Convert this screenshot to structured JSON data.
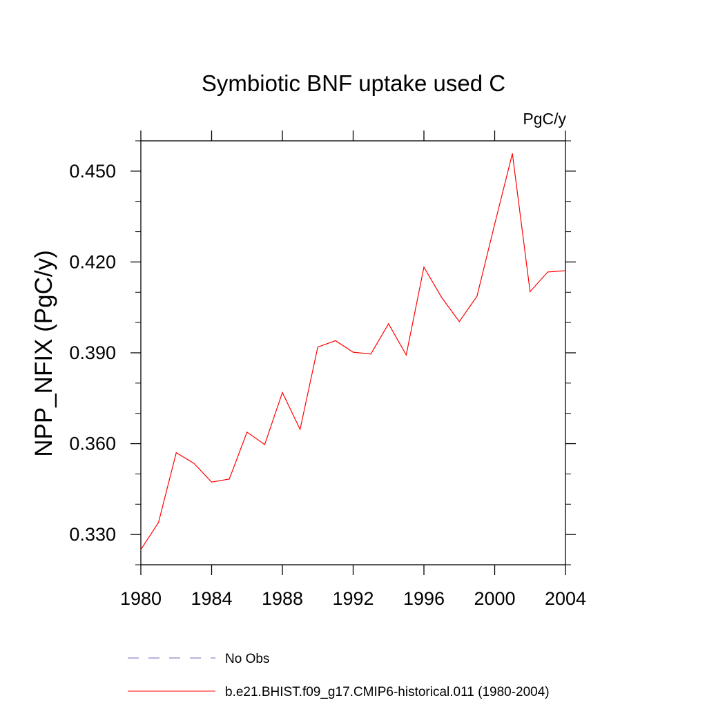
{
  "chart_data": {
    "type": "line",
    "title": "Symbiotic BNF uptake used C",
    "units_label": "PgC/y",
    "ylabel": "NPP_NFIX  (PgC/y)",
    "xlabel": "",
    "xlim": [
      1980,
      2004
    ],
    "ylim": [
      0.32,
      0.46
    ],
    "x_ticks": [
      1980,
      1984,
      1988,
      1992,
      1996,
      2000,
      2004
    ],
    "x_tick_labels": [
      "1980",
      "1984",
      "1988",
      "1992",
      "1996",
      "2000",
      "2004"
    ],
    "y_ticks": [
      0.33,
      0.36,
      0.39,
      0.42,
      0.45
    ],
    "y_tick_labels": [
      "0.330",
      "0.360",
      "0.390",
      "0.420",
      "0.450"
    ],
    "y_minor_step": 0.01,
    "x_minor_step": 1,
    "grid": false,
    "legend_position": "bottom",
    "series": [
      {
        "name": "b.e21.BHIST.f09_g17.CMIP6-historical.011 (1980-2004)",
        "color": "#ff0000",
        "style": "solid",
        "x": [
          1980,
          1981,
          1982,
          1983,
          1984,
          1985,
          1986,
          1987,
          1988,
          1989,
          1990,
          1991,
          1992,
          1993,
          1994,
          1995,
          1996,
          1997,
          1998,
          1999,
          2000,
          2001,
          2002,
          2003,
          2004
        ],
        "values": [
          0.325,
          0.334,
          0.357,
          0.3535,
          0.3473,
          0.3483,
          0.3638,
          0.3597,
          0.3769,
          0.3647,
          0.3919,
          0.394,
          0.3902,
          0.3896,
          0.3996,
          0.3893,
          0.4183,
          0.4083,
          0.4003,
          0.4087,
          0.4325,
          0.4558,
          0.4102,
          0.4167,
          0.4171
        ]
      }
    ],
    "legend": [
      {
        "label": "No Obs",
        "color": "#6a6ac0",
        "style": "dashed"
      },
      {
        "label": "b.e21.BHIST.f09_g17.CMIP6-historical.011 (1980-2004)",
        "color": "#ff0000",
        "style": "solid"
      }
    ]
  }
}
